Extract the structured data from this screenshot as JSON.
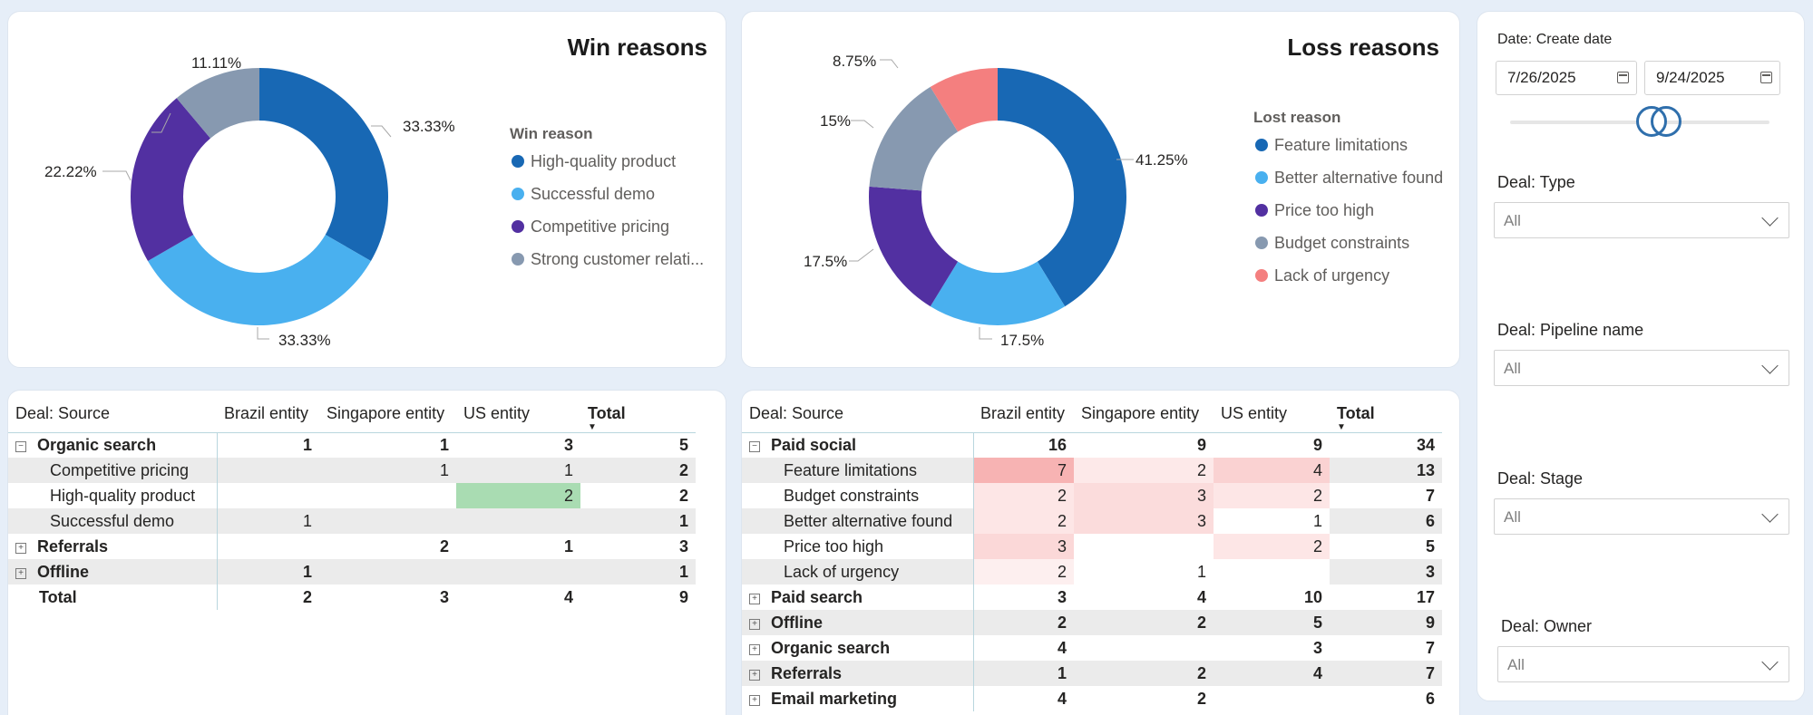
{
  "win_chart": {
    "title": "Win reasons",
    "legend_title": "Win reason",
    "labels": [
      "33.33%",
      "33.33%",
      "22.22%",
      "11.11%"
    ],
    "colors": {
      "high_quality": "#1868b4",
      "demo": "#49b0ef",
      "pricing": "#5230a1",
      "relationship": "#8799b0"
    },
    "legend": [
      "High-quality product",
      "Successful demo",
      "Competitive pricing",
      "Strong customer relati..."
    ]
  },
  "loss_chart": {
    "title": "Loss reasons",
    "legend_title": "Lost reason",
    "labels": [
      "41.25%",
      "17.5%",
      "17.5%",
      "15%",
      "8.75%"
    ],
    "colors": {
      "feature": "#1868b4",
      "alternative": "#49b0ef",
      "price": "#5230a1",
      "budget": "#8799b0",
      "urgency": "#f47f7f"
    },
    "legend": [
      "Feature limitations",
      "Better alternative found",
      "Price too high",
      "Budget constraints",
      "Lack of urgency"
    ]
  },
  "chart_data": [
    {
      "type": "pie",
      "title": "Win reasons",
      "legend_title": "Win reason",
      "categories": [
        "High-quality product",
        "Successful demo",
        "Competitive pricing",
        "Strong customer relati..."
      ],
      "values": [
        33.33,
        33.33,
        22.22,
        11.11
      ],
      "legend_position": "right"
    },
    {
      "type": "pie",
      "title": "Loss reasons",
      "legend_title": "Lost reason",
      "categories": [
        "Feature limitations",
        "Better alternative found",
        "Price too high",
        "Budget constraints",
        "Lack of urgency"
      ],
      "values": [
        41.25,
        17.5,
        17.5,
        15,
        8.75
      ],
      "legend_position": "right"
    }
  ],
  "win_table": {
    "headers": [
      "Deal: Source",
      "Brazil entity",
      "Singapore entity",
      "US entity",
      "Total"
    ],
    "rows": [
      {
        "label": "Organic search",
        "expander": "⊟",
        "cells": [
          "1",
          "1",
          "3",
          "5"
        ]
      },
      {
        "label": "Competitive pricing",
        "cells": [
          "",
          "1",
          "1",
          "2"
        ]
      },
      {
        "label": "High-quality product",
        "cells": [
          "",
          "",
          "2",
          "2"
        ]
      },
      {
        "label": "Successful demo",
        "cells": [
          "1",
          "",
          "",
          "1"
        ]
      },
      {
        "label": "Referrals",
        "expander": "⊞",
        "cells": [
          "",
          "2",
          "1",
          "3"
        ]
      },
      {
        "label": "Offline",
        "expander": "⊞",
        "cells": [
          "1",
          "",
          "",
          "1"
        ]
      },
      {
        "label": "Total",
        "cells": [
          "2",
          "3",
          "4",
          "9"
        ]
      }
    ]
  },
  "loss_table": {
    "headers": [
      "Deal: Source",
      "Brazil entity",
      "Singapore entity",
      "US entity",
      "Total"
    ],
    "rows": [
      {
        "label": "Paid social",
        "expander": "⊟",
        "cells": [
          "16",
          "9",
          "9",
          "34"
        ]
      },
      {
        "label": "Feature limitations",
        "cells": [
          "7",
          "2",
          "4",
          "13"
        ]
      },
      {
        "label": "Budget constraints",
        "cells": [
          "2",
          "3",
          "2",
          "7"
        ]
      },
      {
        "label": "Better alternative found",
        "cells": [
          "2",
          "3",
          "1",
          "6"
        ]
      },
      {
        "label": "Price too high",
        "cells": [
          "3",
          "",
          "2",
          "5"
        ]
      },
      {
        "label": "Lack of urgency",
        "cells": [
          "2",
          "1",
          "",
          "3"
        ]
      },
      {
        "label": "Paid search",
        "expander": "⊞",
        "cells": [
          "3",
          "4",
          "10",
          "17"
        ]
      },
      {
        "label": "Offline",
        "expander": "⊞",
        "cells": [
          "2",
          "2",
          "5",
          "9"
        ]
      },
      {
        "label": "Organic search",
        "expander": "⊞",
        "cells": [
          "4",
          "",
          "3",
          "7"
        ]
      },
      {
        "label": "Referrals",
        "expander": "⊞",
        "cells": [
          "1",
          "2",
          "4",
          "7"
        ]
      },
      {
        "label": "Email marketing",
        "expander": "⊞",
        "cells": [
          "4",
          "2",
          "",
          "6"
        ]
      }
    ]
  },
  "filters": {
    "date_label": "Date: Create date",
    "date_start": "7/26/2025",
    "date_end": "9/24/2025",
    "type_label": "Deal: Type",
    "type_value": "All",
    "pipeline_label": "Deal: Pipeline name",
    "pipeline_value": "All",
    "stage_label": "Deal: Stage",
    "stage_value": "All",
    "owner_label": "Deal: Owner",
    "owner_value": "All"
  }
}
